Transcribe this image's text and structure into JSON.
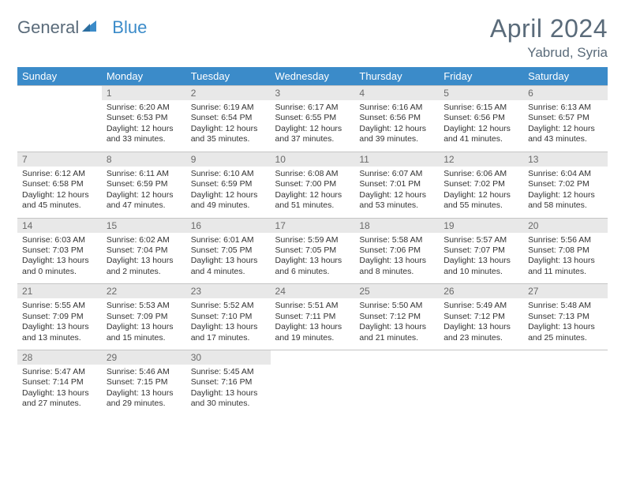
{
  "brand": {
    "part1": "General",
    "part2": "Blue"
  },
  "title": "April 2024",
  "location": "Yabrud, Syria",
  "colors": {
    "header_bg": "#3b8bc9",
    "header_text": "#ffffff",
    "daynum_bg": "#e8e8e8",
    "text": "#333333",
    "muted": "#5a6b7a"
  },
  "days_of_week": [
    "Sunday",
    "Monday",
    "Tuesday",
    "Wednesday",
    "Thursday",
    "Friday",
    "Saturday"
  ],
  "weeks": [
    {
      "nums": [
        "",
        "1",
        "2",
        "3",
        "4",
        "5",
        "6"
      ],
      "cells": [
        null,
        {
          "sunrise": "6:20 AM",
          "sunset": "6:53 PM",
          "dl1": "Daylight: 12 hours",
          "dl2": "and 33 minutes."
        },
        {
          "sunrise": "6:19 AM",
          "sunset": "6:54 PM",
          "dl1": "Daylight: 12 hours",
          "dl2": "and 35 minutes."
        },
        {
          "sunrise": "6:17 AM",
          "sunset": "6:55 PM",
          "dl1": "Daylight: 12 hours",
          "dl2": "and 37 minutes."
        },
        {
          "sunrise": "6:16 AM",
          "sunset": "6:56 PM",
          "dl1": "Daylight: 12 hours",
          "dl2": "and 39 minutes."
        },
        {
          "sunrise": "6:15 AM",
          "sunset": "6:56 PM",
          "dl1": "Daylight: 12 hours",
          "dl2": "and 41 minutes."
        },
        {
          "sunrise": "6:13 AM",
          "sunset": "6:57 PM",
          "dl1": "Daylight: 12 hours",
          "dl2": "and 43 minutes."
        }
      ]
    },
    {
      "nums": [
        "7",
        "8",
        "9",
        "10",
        "11",
        "12",
        "13"
      ],
      "cells": [
        {
          "sunrise": "6:12 AM",
          "sunset": "6:58 PM",
          "dl1": "Daylight: 12 hours",
          "dl2": "and 45 minutes."
        },
        {
          "sunrise": "6:11 AM",
          "sunset": "6:59 PM",
          "dl1": "Daylight: 12 hours",
          "dl2": "and 47 minutes."
        },
        {
          "sunrise": "6:10 AM",
          "sunset": "6:59 PM",
          "dl1": "Daylight: 12 hours",
          "dl2": "and 49 minutes."
        },
        {
          "sunrise": "6:08 AM",
          "sunset": "7:00 PM",
          "dl1": "Daylight: 12 hours",
          "dl2": "and 51 minutes."
        },
        {
          "sunrise": "6:07 AM",
          "sunset": "7:01 PM",
          "dl1": "Daylight: 12 hours",
          "dl2": "and 53 minutes."
        },
        {
          "sunrise": "6:06 AM",
          "sunset": "7:02 PM",
          "dl1": "Daylight: 12 hours",
          "dl2": "and 55 minutes."
        },
        {
          "sunrise": "6:04 AM",
          "sunset": "7:02 PM",
          "dl1": "Daylight: 12 hours",
          "dl2": "and 58 minutes."
        }
      ]
    },
    {
      "nums": [
        "14",
        "15",
        "16",
        "17",
        "18",
        "19",
        "20"
      ],
      "cells": [
        {
          "sunrise": "6:03 AM",
          "sunset": "7:03 PM",
          "dl1": "Daylight: 13 hours",
          "dl2": "and 0 minutes."
        },
        {
          "sunrise": "6:02 AM",
          "sunset": "7:04 PM",
          "dl1": "Daylight: 13 hours",
          "dl2": "and 2 minutes."
        },
        {
          "sunrise": "6:01 AM",
          "sunset": "7:05 PM",
          "dl1": "Daylight: 13 hours",
          "dl2": "and 4 minutes."
        },
        {
          "sunrise": "5:59 AM",
          "sunset": "7:05 PM",
          "dl1": "Daylight: 13 hours",
          "dl2": "and 6 minutes."
        },
        {
          "sunrise": "5:58 AM",
          "sunset": "7:06 PM",
          "dl1": "Daylight: 13 hours",
          "dl2": "and 8 minutes."
        },
        {
          "sunrise": "5:57 AM",
          "sunset": "7:07 PM",
          "dl1": "Daylight: 13 hours",
          "dl2": "and 10 minutes."
        },
        {
          "sunrise": "5:56 AM",
          "sunset": "7:08 PM",
          "dl1": "Daylight: 13 hours",
          "dl2": "and 11 minutes."
        }
      ]
    },
    {
      "nums": [
        "21",
        "22",
        "23",
        "24",
        "25",
        "26",
        "27"
      ],
      "cells": [
        {
          "sunrise": "5:55 AM",
          "sunset": "7:09 PM",
          "dl1": "Daylight: 13 hours",
          "dl2": "and 13 minutes."
        },
        {
          "sunrise": "5:53 AM",
          "sunset": "7:09 PM",
          "dl1": "Daylight: 13 hours",
          "dl2": "and 15 minutes."
        },
        {
          "sunrise": "5:52 AM",
          "sunset": "7:10 PM",
          "dl1": "Daylight: 13 hours",
          "dl2": "and 17 minutes."
        },
        {
          "sunrise": "5:51 AM",
          "sunset": "7:11 PM",
          "dl1": "Daylight: 13 hours",
          "dl2": "and 19 minutes."
        },
        {
          "sunrise": "5:50 AM",
          "sunset": "7:12 PM",
          "dl1": "Daylight: 13 hours",
          "dl2": "and 21 minutes."
        },
        {
          "sunrise": "5:49 AM",
          "sunset": "7:12 PM",
          "dl1": "Daylight: 13 hours",
          "dl2": "and 23 minutes."
        },
        {
          "sunrise": "5:48 AM",
          "sunset": "7:13 PM",
          "dl1": "Daylight: 13 hours",
          "dl2": "and 25 minutes."
        }
      ]
    },
    {
      "nums": [
        "28",
        "29",
        "30",
        "",
        "",
        "",
        ""
      ],
      "cells": [
        {
          "sunrise": "5:47 AM",
          "sunset": "7:14 PM",
          "dl1": "Daylight: 13 hours",
          "dl2": "and 27 minutes."
        },
        {
          "sunrise": "5:46 AM",
          "sunset": "7:15 PM",
          "dl1": "Daylight: 13 hours",
          "dl2": "and 29 minutes."
        },
        {
          "sunrise": "5:45 AM",
          "sunset": "7:16 PM",
          "dl1": "Daylight: 13 hours",
          "dl2": "and 30 minutes."
        },
        null,
        null,
        null,
        null
      ]
    }
  ]
}
